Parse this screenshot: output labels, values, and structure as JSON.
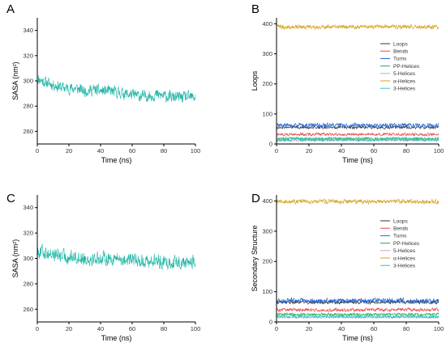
{
  "chart_data": [
    {
      "panel": "A",
      "type": "line",
      "xlabel": "Time (ns)",
      "ylabel": "SASA (nm²)",
      "xlim": [
        0,
        100
      ],
      "ylim": [
        250,
        350
      ],
      "xticks": [
        0,
        20,
        40,
        60,
        80,
        100
      ],
      "yticks": [
        260,
        280,
        300,
        320,
        340
      ],
      "series": [
        {
          "color": "#1fb5a5",
          "x": [
            0,
            5,
            10,
            15,
            20,
            25,
            30,
            35,
            40,
            45,
            50,
            55,
            60,
            65,
            70,
            75,
            80,
            85,
            90,
            95,
            100
          ],
          "y": [
            302,
            299,
            297,
            295,
            294,
            294,
            292,
            293,
            292,
            292,
            291,
            290,
            289,
            288,
            288,
            289,
            288,
            287,
            287,
            287,
            287
          ],
          "noise": 5
        }
      ]
    },
    {
      "panel": "B",
      "type": "line",
      "xlabel": "Time (ns)",
      "ylabel": "Loops",
      "xlim": [
        0,
        100
      ],
      "ylim": [
        0,
        420
      ],
      "xticks": [
        0,
        20,
        40,
        60,
        80,
        100
      ],
      "yticks": [
        0,
        100,
        200,
        300,
        400
      ],
      "legend": "center-right",
      "series": [
        {
          "name": "Loops",
          "color": "#333333",
          "x": [
            0,
            100
          ],
          "y": [
            55,
            55
          ],
          "noise": 5
        },
        {
          "name": "Bends",
          "color": "#e8434a",
          "x": [
            0,
            100
          ],
          "y": [
            32,
            32
          ],
          "noise": 5
        },
        {
          "name": "Turns",
          "color": "#1b63d8",
          "x": [
            0,
            100
          ],
          "y": [
            62,
            62
          ],
          "noise": 8
        },
        {
          "name": "PP-Helices",
          "color": "#1fae55",
          "x": [
            0,
            100
          ],
          "y": [
            18,
            18
          ],
          "noise": 5
        },
        {
          "name": "5-Helices",
          "color": "#c8a2c8",
          "x": [
            0,
            100
          ],
          "y": [
            12,
            12
          ],
          "noise": 3
        },
        {
          "name": "α-Helices",
          "color": "#d4a017",
          "x": [
            0,
            100
          ],
          "y": [
            390,
            390
          ],
          "noise": 8
        },
        {
          "name": "3-Helices",
          "color": "#27c4c4",
          "x": [
            0,
            100
          ],
          "y": [
            14,
            14
          ],
          "noise": 6
        }
      ]
    },
    {
      "panel": "C",
      "type": "line",
      "xlabel": "Time (ns)",
      "ylabel": "SASA (nm²)",
      "xlim": [
        0,
        100
      ],
      "ylim": [
        250,
        350
      ],
      "xticks": [
        0,
        20,
        40,
        60,
        80,
        100
      ],
      "yticks": [
        260,
        280,
        300,
        320,
        340
      ],
      "series": [
        {
          "color": "#1fb5a5",
          "x": [
            0,
            5,
            10,
            15,
            20,
            25,
            30,
            35,
            40,
            45,
            50,
            55,
            60,
            65,
            70,
            75,
            80,
            85,
            90,
            95,
            100
          ],
          "y": [
            306,
            305,
            303,
            302,
            301,
            301,
            300,
            300,
            300,
            300,
            300,
            299,
            299,
            298,
            298,
            298,
            297,
            297,
            297,
            297,
            297
          ],
          "noise": 6
        }
      ]
    },
    {
      "panel": "D",
      "type": "line",
      "xlabel": "Time (ns)",
      "ylabel": "Secondary Structure",
      "xlim": [
        0,
        100
      ],
      "ylim": [
        0,
        420
      ],
      "xticks": [
        0,
        20,
        40,
        60,
        80,
        100
      ],
      "yticks": [
        0,
        100,
        200,
        300,
        400
      ],
      "legend": "center-right",
      "series": [
        {
          "name": "Loops",
          "color": "#333333",
          "x": [
            0,
            100
          ],
          "y": [
            65,
            65
          ],
          "noise": 6
        },
        {
          "name": "Bends",
          "color": "#e8434a",
          "x": [
            0,
            100
          ],
          "y": [
            40,
            40
          ],
          "noise": 6
        },
        {
          "name": "Turns",
          "color": "#1b63d8",
          "x": [
            0,
            100
          ],
          "y": [
            70,
            70
          ],
          "noise": 9
        },
        {
          "name": "PP-Helices",
          "color": "#1fae55",
          "x": [
            0,
            100
          ],
          "y": [
            25,
            25
          ],
          "noise": 5
        },
        {
          "name": "5-Helices",
          "color": "#c8a2c8",
          "x": [
            0,
            100
          ],
          "y": [
            15,
            15
          ],
          "noise": 3
        },
        {
          "name": "α-Helices",
          "color": "#d4a017",
          "x": [
            0,
            100
          ],
          "y": [
            398,
            398
          ],
          "noise": 8
        },
        {
          "name": "3-Helices",
          "color": "#27c4c4",
          "x": [
            0,
            100
          ],
          "y": [
            18,
            18
          ],
          "noise": 6
        }
      ]
    }
  ]
}
